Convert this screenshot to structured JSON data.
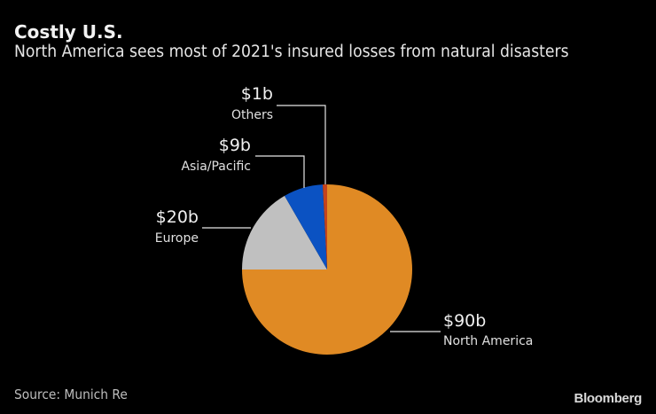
{
  "header": {
    "title": "Costly U.S.",
    "subtitle": "North America sees most of 2021's insured losses from natural disasters"
  },
  "footer": {
    "source": "Source: Munich Re",
    "brand": "Bloomberg"
  },
  "chart_data": {
    "type": "pie",
    "title": "Costly U.S.",
    "subtitle": "North America sees most of 2021's insured losses from natural disasters",
    "unit": "billion USD",
    "start_angle_deg": 0,
    "direction": "clockwise",
    "slices": [
      {
        "name": "North America",
        "value": 90,
        "label": "$90b",
        "color": "#e08a24"
      },
      {
        "name": "Europe",
        "value": 20,
        "label": "$20b",
        "color": "#c0c0c0"
      },
      {
        "name": "Asia/Pacific",
        "value": 9,
        "label": "$9b",
        "color": "#0b52c2"
      },
      {
        "name": "Others",
        "value": 1,
        "label": "$1b",
        "color": "#c4431d"
      }
    ],
    "source": "Source: Munich Re"
  }
}
